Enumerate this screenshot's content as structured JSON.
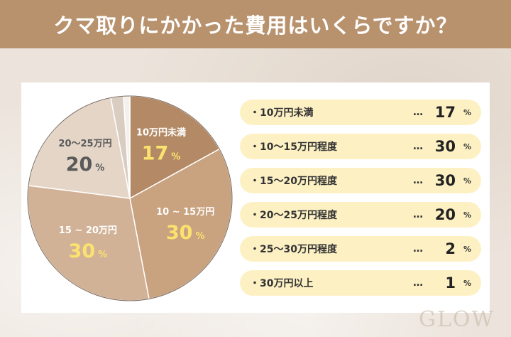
{
  "header": {
    "title": "クマ取りにかかった費用はいくらですか？"
  },
  "chart_data": {
    "type": "pie",
    "title": "クマ取りにかかった費用はいくらですか？",
    "unit": "%",
    "slices": [
      {
        "name": "10万円未満",
        "pie_label": "10万円未満",
        "value": 17,
        "color": "#b48a66",
        "label_color": "#ffffff",
        "pct_color": "#fbe26f",
        "legend_label": "10万円未満"
      },
      {
        "name": "10〜15万円程度",
        "pie_label": "10 ~ 15万円",
        "value": 30,
        "color": "#c9a27f",
        "label_color": "#ffffff",
        "pct_color": "#fbe26f",
        "legend_label": "10〜15万円程度"
      },
      {
        "name": "15〜20万円程度",
        "pie_label": "15 ~ 20万円",
        "value": 30,
        "color": "#d2b296",
        "label_color": "#ffffff",
        "pct_color": "#fbe26f",
        "legend_label": "15〜20万円程度"
      },
      {
        "name": "20〜25万円程度",
        "pie_label": "20〜25万円",
        "value": 20,
        "color": "#e4d5c7",
        "label_color": "#5a5a5a",
        "pct_color": "#5a5a5a",
        "legend_label": "20〜25万円程度"
      },
      {
        "name": "25〜30万円程度",
        "pie_label": "",
        "value": 2,
        "color": "#d9ccc1",
        "label_color": "#5a5a5a",
        "pct_color": "#5a5a5a",
        "legend_label": "25〜30万円程度"
      },
      {
        "name": "30万円以上",
        "pie_label": "",
        "value": 1,
        "color": "#f3f0ee",
        "label_color": "#5a5a5a",
        "pct_color": "#5a5a5a",
        "legend_label": "30万円以上"
      }
    ]
  },
  "legend": {
    "dots": "…",
    "pct_symbol": "%",
    "items": [
      {
        "label": "・10万円未満",
        "value": "17"
      },
      {
        "label": "・10〜15万円程度",
        "value": "30"
      },
      {
        "label": "・15〜20万円程度",
        "value": "30"
      },
      {
        "label": "・20〜25万円程度",
        "value": "20"
      },
      {
        "label": "・25〜30万円程度",
        "value": "2"
      },
      {
        "label": "・30万円以上",
        "value": "1"
      }
    ]
  },
  "watermark": {
    "text": "GLOW"
  }
}
